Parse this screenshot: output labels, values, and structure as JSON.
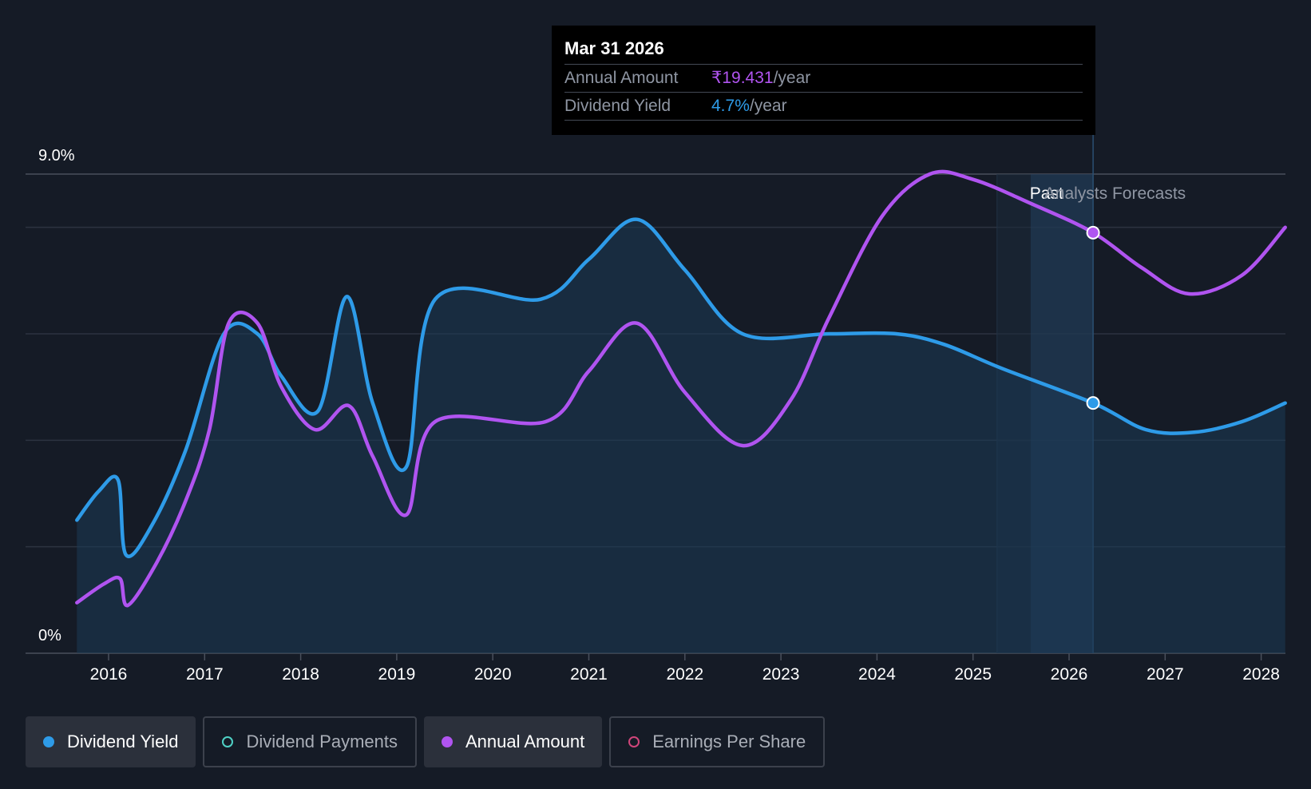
{
  "tooltip": {
    "date": "Mar 31 2026",
    "rows": [
      {
        "label": "Annual Amount",
        "value": "₹19.431",
        "unit": "/year"
      },
      {
        "label": "Dividend Yield",
        "value": "4.7%",
        "unit": "/year"
      }
    ]
  },
  "legend": [
    {
      "label": "Dividend Yield",
      "color": "#2e9be8",
      "active": true,
      "filled": true
    },
    {
      "label": "Dividend Payments",
      "color": "#4fd1c5",
      "active": false,
      "filled": false
    },
    {
      "label": "Annual Amount",
      "color": "#b054f0",
      "active": true,
      "filled": true
    },
    {
      "label": "Earnings Per Share",
      "color": "#d0457a",
      "active": false,
      "filled": false
    }
  ],
  "chart_data": {
    "type": "line",
    "y_axis_labels": [
      "9.0%",
      "0%"
    ],
    "ylim": [
      0,
      9.0
    ],
    "x_ticks": [
      "2016",
      "2017",
      "2018",
      "2019",
      "2020",
      "2021",
      "2022",
      "2023",
      "2024",
      "2025",
      "2026",
      "2027",
      "2028"
    ],
    "xlim": [
      2015.67,
      2028.25
    ],
    "grid": true,
    "past_label": "Past",
    "forecast_label": "Analysts Forecasts",
    "forecast_start": 2025.25,
    "highlight_x": 2026.25,
    "colors": {
      "yield": "#2e9be8",
      "amount": "#b054f0"
    },
    "series": [
      {
        "name": "Dividend Yield",
        "key": "yield",
        "points": [
          [
            2015.67,
            2.5
          ],
          [
            2015.9,
            3.05
          ],
          [
            2016.1,
            3.25
          ],
          [
            2016.18,
            1.85
          ],
          [
            2016.45,
            2.4
          ],
          [
            2016.8,
            3.8
          ],
          [
            2017.2,
            6.0
          ],
          [
            2017.55,
            6.0
          ],
          [
            2017.8,
            5.2
          ],
          [
            2018.18,
            4.55
          ],
          [
            2018.48,
            6.7
          ],
          [
            2018.75,
            4.7
          ],
          [
            2019.1,
            3.5
          ],
          [
            2019.4,
            6.65
          ],
          [
            2020.5,
            6.65
          ],
          [
            2021.0,
            7.4
          ],
          [
            2021.5,
            8.15
          ],
          [
            2022.0,
            7.2
          ],
          [
            2022.6,
            6.0
          ],
          [
            2023.5,
            6.0
          ],
          [
            2024.2,
            6.0
          ],
          [
            2024.7,
            5.8
          ],
          [
            2025.3,
            5.35
          ],
          [
            2026.25,
            4.7
          ],
          [
            2026.8,
            4.2
          ],
          [
            2027.3,
            4.15
          ],
          [
            2027.8,
            4.35
          ],
          [
            2028.25,
            4.7
          ]
        ]
      },
      {
        "name": "Annual Amount",
        "key": "amount",
        "points": [
          [
            2015.67,
            0.95
          ],
          [
            2015.95,
            1.3
          ],
          [
            2016.12,
            1.4
          ],
          [
            2016.2,
            0.9
          ],
          [
            2016.5,
            1.7
          ],
          [
            2016.8,
            2.85
          ],
          [
            2017.05,
            4.2
          ],
          [
            2017.25,
            6.2
          ],
          [
            2017.55,
            6.2
          ],
          [
            2017.8,
            5.0
          ],
          [
            2018.15,
            4.2
          ],
          [
            2018.5,
            4.65
          ],
          [
            2018.75,
            3.7
          ],
          [
            2019.1,
            2.6
          ],
          [
            2019.4,
            4.35
          ],
          [
            2020.55,
            4.35
          ],
          [
            2021.0,
            5.3
          ],
          [
            2021.5,
            6.2
          ],
          [
            2022.0,
            4.9
          ],
          [
            2022.6,
            3.9
          ],
          [
            2023.1,
            4.75
          ],
          [
            2023.5,
            6.3
          ],
          [
            2024.05,
            8.2
          ],
          [
            2024.55,
            9.0
          ],
          [
            2025.0,
            8.9
          ],
          [
            2025.6,
            8.45
          ],
          [
            2026.25,
            7.9
          ],
          [
            2026.75,
            7.25
          ],
          [
            2027.25,
            6.75
          ],
          [
            2027.8,
            7.1
          ],
          [
            2028.25,
            8.0
          ]
        ]
      }
    ]
  }
}
